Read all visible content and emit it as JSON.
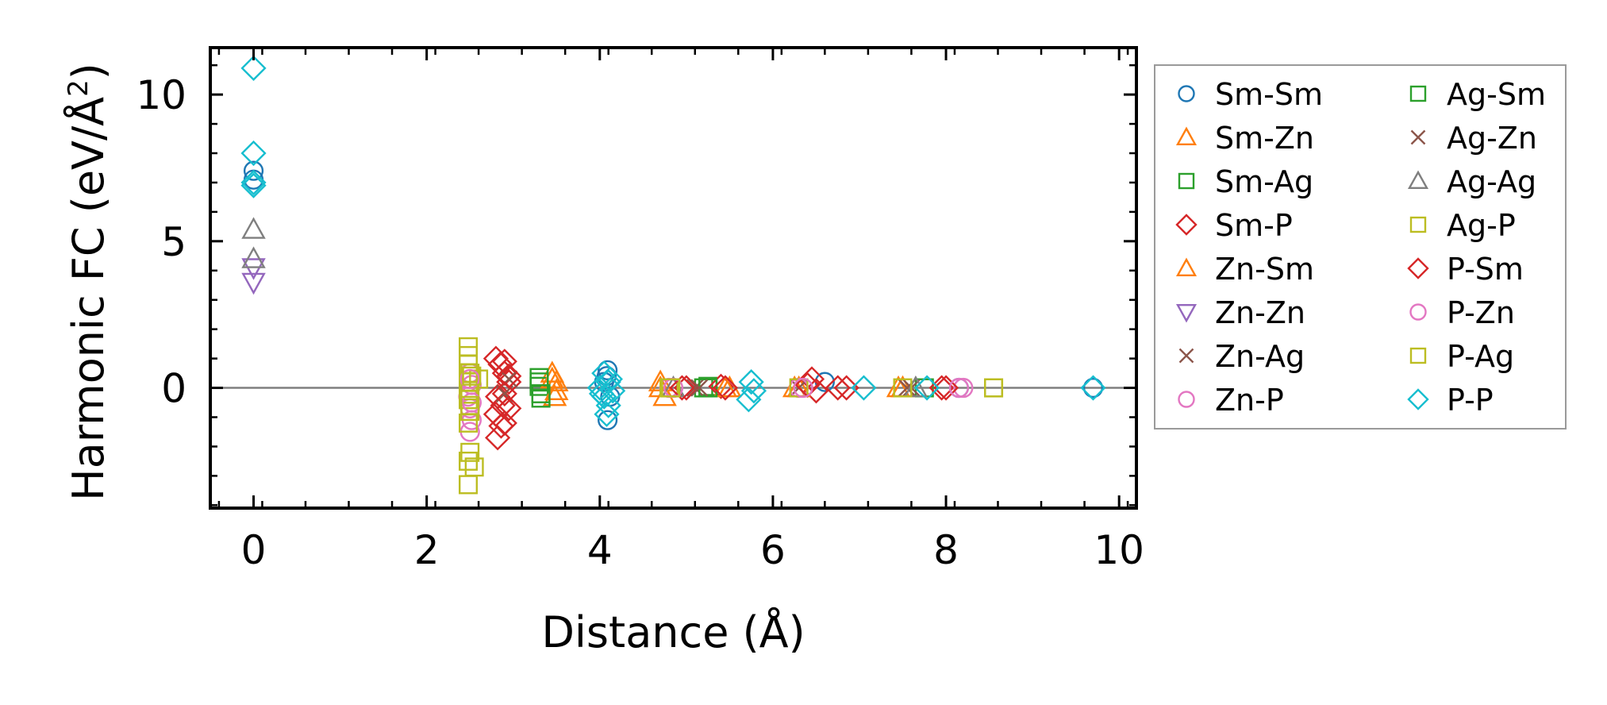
{
  "chart_data": {
    "type": "scatter",
    "title": "",
    "xlabel": "Distance (Å)",
    "ylabel": "Harmonic FC (eV/Å²)",
    "ylabel_main": "Harmonic FC (eV/Å",
    "ylabel_sup": "2",
    "ylabel_end": ")",
    "xlim": [
      -0.5,
      10.2
    ],
    "ylim": [
      -4.1,
      11.6
    ],
    "xticks": [
      0,
      2,
      4,
      6,
      8,
      10
    ],
    "xtick_labels": [
      "0",
      "2",
      "4",
      "6",
      "8",
      "10"
    ],
    "yticks": [
      0,
      5,
      10
    ],
    "ytick_labels": [
      "0",
      "5",
      "10"
    ],
    "reference_line_y": 0,
    "grid": false,
    "legend_position": "outside-right",
    "series": [
      {
        "name": "Sm-Sm",
        "marker": "circle",
        "color": "#1f77b4",
        "points": [
          [
            0,
            7.4
          ],
          [
            0,
            7.1
          ],
          [
            4.09,
            0.6
          ],
          [
            4.09,
            -1.1
          ],
          [
            4.05,
            0.2
          ],
          [
            4.12,
            -0.3
          ],
          [
            4.08,
            0.4
          ],
          [
            6.6,
            0.2
          ],
          [
            8.15,
            0.0
          ],
          [
            9.7,
            0.0
          ]
        ]
      },
      {
        "name": "Sm-Zn",
        "marker": "triangle-up",
        "color": "#ff7f0e",
        "points": [
          [
            3.45,
            0.5
          ],
          [
            3.5,
            0.2
          ],
          [
            3.48,
            -0.3
          ],
          [
            4.7,
            0.2
          ],
          [
            4.75,
            -0.3
          ],
          [
            5.5,
            0.0
          ],
          [
            6.25,
            0.0
          ],
          [
            7.45,
            0.0
          ],
          [
            7.5,
            0.0
          ]
        ]
      },
      {
        "name": "Sm-Ag",
        "marker": "square",
        "color": "#2ca02c",
        "points": [
          [
            3.3,
            0.35
          ],
          [
            3.3,
            0.05
          ],
          [
            3.32,
            -0.35
          ],
          [
            5.2,
            0.0
          ],
          [
            5.25,
            0.05
          ],
          [
            7.75,
            0.0
          ]
        ]
      },
      {
        "name": "Sm-P",
        "marker": "diamond",
        "color": "#d62728",
        "points": [
          [
            2.8,
            1.0
          ],
          [
            2.85,
            0.8
          ],
          [
            2.9,
            0.5
          ],
          [
            2.95,
            0.2
          ],
          [
            2.82,
            -0.3
          ],
          [
            2.88,
            -0.6
          ],
          [
            2.8,
            -0.9
          ],
          [
            2.86,
            -1.3
          ],
          [
            2.82,
            -1.7
          ],
          [
            5.0,
            0.0
          ],
          [
            5.4,
            0.05
          ],
          [
            6.45,
            0.3
          ],
          [
            6.5,
            -0.1
          ],
          [
            6.85,
            0.0
          ],
          [
            7.95,
            0.0
          ]
        ]
      },
      {
        "name": "Zn-Sm",
        "marker": "triangle-up",
        "color": "#ff7f0e",
        "points": [
          [
            3.45,
            0.3
          ],
          [
            3.5,
            -0.1
          ],
          [
            4.7,
            0.0
          ],
          [
            5.45,
            0.0
          ],
          [
            6.3,
            0.0
          ],
          [
            7.5,
            0.0
          ]
        ]
      },
      {
        "name": "Zn-Zn",
        "marker": "triangle-down",
        "color": "#9467bd",
        "points": [
          [
            0,
            4.1
          ],
          [
            0,
            3.6
          ]
        ]
      },
      {
        "name": "Zn-Ag",
        "marker": "x",
        "color": "#8c564b",
        "points": [
          [
            2.9,
            -0.2
          ],
          [
            5.1,
            0.0
          ],
          [
            6.3,
            0.0
          ],
          [
            7.6,
            0.0
          ]
        ]
      },
      {
        "name": "Zn-P",
        "marker": "circle",
        "color": "#e377c2",
        "points": [
          [
            2.5,
            0.5
          ],
          [
            2.52,
            0.1
          ],
          [
            2.48,
            -0.3
          ],
          [
            2.5,
            -0.7
          ],
          [
            2.52,
            -1.1
          ],
          [
            2.5,
            -1.5
          ],
          [
            4.8,
            0.0
          ],
          [
            6.3,
            0.0
          ],
          [
            8.2,
            0.0
          ]
        ]
      },
      {
        "name": "Ag-Sm",
        "marker": "square",
        "color": "#2ca02c",
        "points": [
          [
            3.3,
            0.2
          ],
          [
            3.32,
            -0.2
          ],
          [
            5.25,
            0.0
          ]
        ]
      },
      {
        "name": "Ag-Zn",
        "marker": "x",
        "color": "#8c564b",
        "points": [
          [
            2.95,
            0.3
          ],
          [
            5.15,
            0.0
          ],
          [
            7.55,
            0.0
          ]
        ]
      },
      {
        "name": "Ag-Ag",
        "marker": "triangle-up",
        "color": "#7f7f7f",
        "points": [
          [
            0,
            5.4
          ],
          [
            0,
            4.4
          ],
          [
            4.85,
            0.0
          ],
          [
            7.65,
            0.0
          ]
        ]
      },
      {
        "name": "Ag-P",
        "marker": "square",
        "color": "#bcbd22",
        "points": [
          [
            2.48,
            1.4
          ],
          [
            2.48,
            1.1
          ],
          [
            2.48,
            0.8
          ],
          [
            2.5,
            0.5
          ],
          [
            2.48,
            0.2
          ],
          [
            2.5,
            -0.1
          ],
          [
            2.48,
            -0.4
          ],
          [
            2.5,
            -0.8
          ],
          [
            2.48,
            -1.2
          ],
          [
            2.48,
            -2.5
          ],
          [
            2.55,
            -2.7
          ],
          [
            2.48,
            -3.3
          ],
          [
            2.6,
            0.3
          ],
          [
            4.8,
            0.0
          ],
          [
            6.3,
            0.0
          ],
          [
            7.5,
            0.0
          ],
          [
            8.55,
            0.0
          ]
        ]
      },
      {
        "name": "P-Sm",
        "marker": "diamond",
        "color": "#d62728",
        "points": [
          [
            2.9,
            0.9
          ],
          [
            2.95,
            0.4
          ],
          [
            2.9,
            -0.2
          ],
          [
            2.95,
            -0.7
          ],
          [
            2.9,
            -1.2
          ],
          [
            4.95,
            0.0
          ],
          [
            5.45,
            0.0
          ],
          [
            6.4,
            0.1
          ],
          [
            6.75,
            0.0
          ],
          [
            8.0,
            0.0
          ]
        ]
      },
      {
        "name": "P-Zn",
        "marker": "circle",
        "color": "#e377c2",
        "points": [
          [
            2.5,
            0.3
          ],
          [
            2.52,
            -0.5
          ],
          [
            4.85,
            0.0
          ],
          [
            6.35,
            0.0
          ],
          [
            8.15,
            0.0
          ]
        ]
      },
      {
        "name": "P-Ag",
        "marker": "square",
        "color": "#bcbd22",
        "points": [
          [
            2.52,
            0.4
          ],
          [
            2.5,
            -0.6
          ],
          [
            2.5,
            -2.2
          ],
          [
            4.82,
            0.0
          ],
          [
            8.55,
            0.0
          ]
        ]
      },
      {
        "name": "P-P",
        "marker": "diamond",
        "color": "#17becf",
        "points": [
          [
            0,
            10.9
          ],
          [
            0,
            8.0
          ],
          [
            0,
            7.0
          ],
          [
            0,
            6.9
          ],
          [
            4.05,
            0.5
          ],
          [
            4.1,
            0.2
          ],
          [
            4.0,
            0.0
          ],
          [
            4.15,
            -0.1
          ],
          [
            4.05,
            -0.3
          ],
          [
            4.1,
            -0.6
          ],
          [
            4.08,
            -0.9
          ],
          [
            4.12,
            0.3
          ],
          [
            4.02,
            -0.2
          ],
          [
            5.75,
            0.2
          ],
          [
            5.78,
            -0.1
          ],
          [
            5.72,
            -0.4
          ],
          [
            7.05,
            0.0
          ],
          [
            7.78,
            0.0
          ],
          [
            9.7,
            0.0
          ]
        ]
      }
    ]
  }
}
